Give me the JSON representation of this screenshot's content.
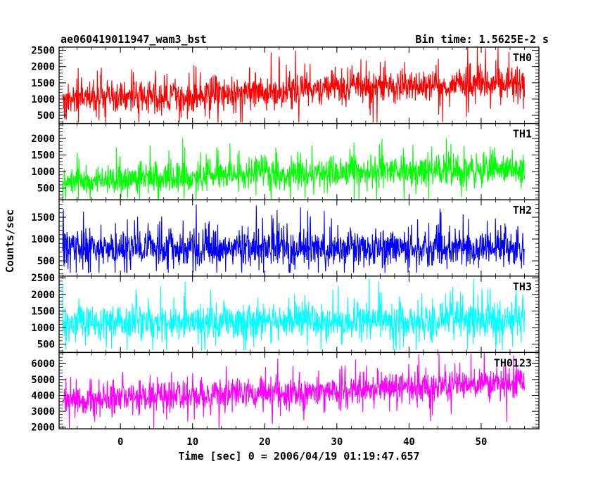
{
  "header": {
    "title": "ae060419011947_wam3_bst",
    "bin_time": "Bin time: 1.5625E-2 s"
  },
  "chart_data": {
    "type": "line",
    "title": "ae060419011947_wam3_bst",
    "subtitle": "Bin time: 1.5625E-2 s",
    "xlabel": "Time [sec] 0 = 2006/04/19 01:19:47.657",
    "ylabel": "Counts/sec",
    "xlim": [
      -8.5,
      58
    ],
    "x_ticks": [
      0,
      10,
      20,
      30,
      40,
      50
    ],
    "data_x_range": [
      -8,
      56
    ],
    "grid": false,
    "legend": "none",
    "panels": [
      {
        "name": "TH0",
        "color": "#ff0000",
        "ylim": [
          250,
          2600
        ],
        "y_ticks": [
          500,
          1000,
          1500,
          2000,
          2500
        ],
        "trend": [
          [
            -8,
            1000
          ],
          [
            10,
            1100
          ],
          [
            25,
            1300
          ],
          [
            40,
            1400
          ],
          [
            56,
            1500
          ]
        ],
        "spread": 480,
        "floor": 280,
        "ceil": 2600
      },
      {
        "name": "TH1",
        "color": "#00ff00",
        "ylim": [
          150,
          2450
        ],
        "y_ticks": [
          500,
          1000,
          1500,
          2000
        ],
        "trend": [
          [
            -8,
            700
          ],
          [
            10,
            850
          ],
          [
            25,
            950
          ],
          [
            40,
            1000
          ],
          [
            56,
            1050
          ]
        ],
        "spread": 420,
        "floor": 170,
        "ceil": 2450
      },
      {
        "name": "TH2",
        "color": "#0000ff",
        "ylim": [
          150,
          1900
        ],
        "y_ticks": [
          500,
          1000,
          1500
        ],
        "trend": [
          [
            -8,
            800
          ],
          [
            56,
            800
          ]
        ],
        "spread": 380,
        "floor": 230,
        "ceil": 1900
      },
      {
        "name": "TH3",
        "color": "#00ffff",
        "ylim": [
          250,
          2550
        ],
        "y_ticks": [
          500,
          1000,
          1500,
          2000,
          2500
        ],
        "trend": [
          [
            -8,
            1150
          ],
          [
            56,
            1200
          ]
        ],
        "spread": 480,
        "floor": 320,
        "ceil": 2500
      },
      {
        "name": "TH0123",
        "color": "#ff00ff",
        "ylim": [
          1900,
          6700
        ],
        "y_ticks": [
          2000,
          3000,
          4000,
          5000,
          6000
        ],
        "trend": [
          [
            -8,
            3700
          ],
          [
            10,
            4000
          ],
          [
            25,
            4200
          ],
          [
            40,
            4500
          ],
          [
            56,
            4900
          ]
        ],
        "spread": 900,
        "floor": 1950,
        "ceil": 6700
      }
    ]
  }
}
